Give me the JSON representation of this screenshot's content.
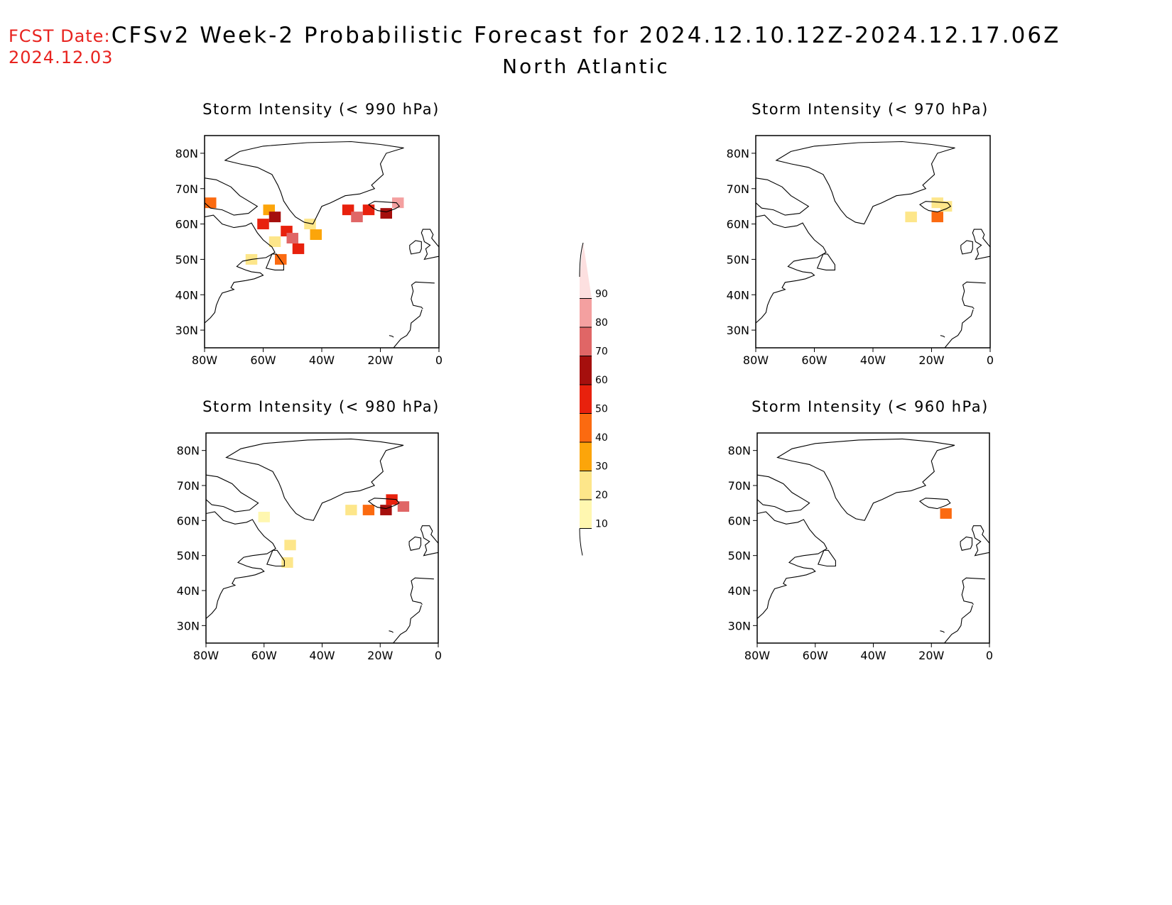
{
  "header": {
    "fcst_label": "FCST Date:",
    "fcst_date": "2024.12.03",
    "title": "CFSv2 Week-2 Probabilistic Forecast for 2024.12.10.12Z-2024.12.17.06Z",
    "region": "North Atlantic"
  },
  "panels": [
    {
      "title": "Storm Intensity (< 990 hPa)"
    },
    {
      "title": "Storm Intensity (< 970 hPa)"
    },
    {
      "title": "Storm Intensity (< 980 hPa)"
    },
    {
      "title": "Storm Intensity (< 960 hPa)"
    }
  ],
  "axes": {
    "lon_labels": [
      "80W",
      "60W",
      "40W",
      "20W",
      "0"
    ],
    "lat_labels": [
      "80N",
      "70N",
      "60N",
      "50N",
      "40N",
      "30N"
    ],
    "lon_range": [
      -80,
      0
    ],
    "lat_range": [
      25,
      85
    ]
  },
  "colorbar": {
    "labels": [
      "10",
      "20",
      "30",
      "40",
      "50",
      "60",
      "70",
      "80",
      "90"
    ],
    "colors": [
      "#fff7b0",
      "#fde68a",
      "#fca50a",
      "#fb6a10",
      "#e8210d",
      "#a50f0d",
      "#e06666",
      "#f4a0a0",
      "#fde0e0"
    ]
  },
  "probability_cells": [
    [
      {
        "lon": -78,
        "lat": 66,
        "p": 40
      },
      {
        "lon": -58,
        "lat": 64,
        "p": 30
      },
      {
        "lon": -60,
        "lat": 60,
        "p": 55
      },
      {
        "lon": -56,
        "lat": 62,
        "p": 60
      },
      {
        "lon": -52,
        "lat": 58,
        "p": 50
      },
      {
        "lon": -56,
        "lat": 55,
        "p": 20
      },
      {
        "lon": -50,
        "lat": 56,
        "p": 70
      },
      {
        "lon": -48,
        "lat": 53,
        "p": 55
      },
      {
        "lon": -54,
        "lat": 50,
        "p": 40
      },
      {
        "lon": -44,
        "lat": 60,
        "p": 25
      },
      {
        "lon": -42,
        "lat": 57,
        "p": 30
      },
      {
        "lon": -31,
        "lat": 64,
        "p": 50
      },
      {
        "lon": -28,
        "lat": 62,
        "p": 70
      },
      {
        "lon": -24,
        "lat": 64,
        "p": 50
      },
      {
        "lon": -18,
        "lat": 63,
        "p": 60
      },
      {
        "lon": -14,
        "lat": 66,
        "p": 80
      },
      {
        "lon": -64,
        "lat": 50,
        "p": 20
      }
    ],
    [
      {
        "lon": -27,
        "lat": 62,
        "p": 20
      },
      {
        "lon": -18,
        "lat": 62,
        "p": 40
      },
      {
        "lon": -15,
        "lat": 65,
        "p": 25
      },
      {
        "lon": -18,
        "lat": 66,
        "p": 20
      }
    ],
    [
      {
        "lon": -60,
        "lat": 61,
        "p": 15
      },
      {
        "lon": -51,
        "lat": 53,
        "p": 20
      },
      {
        "lon": -52,
        "lat": 48,
        "p": 25
      },
      {
        "lon": -30,
        "lat": 63,
        "p": 20
      },
      {
        "lon": -24,
        "lat": 63,
        "p": 40
      },
      {
        "lon": -18,
        "lat": 63,
        "p": 60
      },
      {
        "lon": -16,
        "lat": 66,
        "p": 50
      },
      {
        "lon": -12,
        "lat": 64,
        "p": 70
      }
    ],
    [
      {
        "lon": -15,
        "lat": 62,
        "p": 45
      }
    ]
  ]
}
